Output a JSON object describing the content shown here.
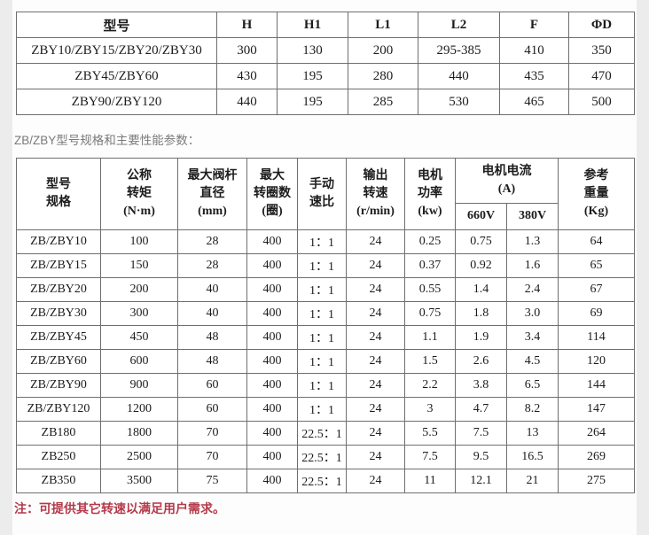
{
  "page": {
    "section_label": "ZB/ZBY型号规格和主要性能参数：",
    "note": "注：可提供其它转速以满足用户需求。"
  },
  "colors": {
    "page_background": "#ececec",
    "content_background": "#fdfdfd",
    "table_border": "#6e6e6e",
    "table_text": "#1c1c1c",
    "label_gray": "#7b7b7b",
    "note_red": "#b43a4a"
  },
  "dimensions_table": {
    "headers": [
      "型号",
      "H",
      "H1",
      "L1",
      "L2",
      "F",
      "ΦD"
    ],
    "rows": [
      [
        "ZBY10/ZBY15/ZBY20/ZBY30",
        "300",
        "130",
        "200",
        "295-385",
        "410",
        "350"
      ],
      [
        "ZBY45/ZBY60",
        "430",
        "195",
        "280",
        "440",
        "435",
        "470"
      ],
      [
        "ZBY90/ZBY120",
        "440",
        "195",
        "285",
        "530",
        "465",
        "500"
      ]
    ]
  },
  "performance_table": {
    "headers": {
      "model": [
        "型号",
        "规格"
      ],
      "torque": [
        "公称",
        "转矩",
        "(N·m)"
      ],
      "stem_diameter": [
        "最大阀杆",
        "直径",
        "(mm)"
      ],
      "max_turns": [
        "最大",
        "转圈数",
        "(圈)"
      ],
      "manual_ratio": [
        "手动",
        "速比"
      ],
      "output_speed": [
        "输出",
        "转速",
        "(r/min)"
      ],
      "motor_power": [
        "电机",
        "功率",
        "(kw)"
      ],
      "motor_current": [
        "电机电流",
        "(A)"
      ],
      "current_660": "660V",
      "current_380": "380V",
      "weight": [
        "参考",
        "重量",
        "(Kg)"
      ]
    },
    "rows": [
      [
        "ZB/ZBY10",
        "100",
        "28",
        "400",
        "1：1",
        "24",
        "0.25",
        "0.75",
        "1.3",
        "64"
      ],
      [
        "ZB/ZBY15",
        "150",
        "28",
        "400",
        "1：1",
        "24",
        "0.37",
        "0.92",
        "1.6",
        "65"
      ],
      [
        "ZB/ZBY20",
        "200",
        "40",
        "400",
        "1：1",
        "24",
        "0.55",
        "1.4",
        "2.4",
        "67"
      ],
      [
        "ZB/ZBY30",
        "300",
        "40",
        "400",
        "1：1",
        "24",
        "0.75",
        "1.8",
        "3.0",
        "69"
      ],
      [
        "ZB/ZBY45",
        "450",
        "48",
        "400",
        "1：1",
        "24",
        "1.1",
        "1.9",
        "3.4",
        "114"
      ],
      [
        "ZB/ZBY60",
        "600",
        "48",
        "400",
        "1：1",
        "24",
        "1.5",
        "2.6",
        "4.5",
        "120"
      ],
      [
        "ZB/ZBY90",
        "900",
        "60",
        "400",
        "1：1",
        "24",
        "2.2",
        "3.8",
        "6.5",
        "144"
      ],
      [
        "ZB/ZBY120",
        "1200",
        "60",
        "400",
        "1：1",
        "24",
        "3",
        "4.7",
        "8.2",
        "147"
      ],
      [
        "ZB180",
        "1800",
        "70",
        "400",
        "22.5：1",
        "24",
        "5.5",
        "7.5",
        "13",
        "264"
      ],
      [
        "ZB250",
        "2500",
        "70",
        "400",
        "22.5：1",
        "24",
        "7.5",
        "9.5",
        "16.5",
        "269"
      ],
      [
        "ZB350",
        "3500",
        "75",
        "400",
        "22.5：1",
        "24",
        "11",
        "12.1",
        "21",
        "275"
      ]
    ]
  }
}
